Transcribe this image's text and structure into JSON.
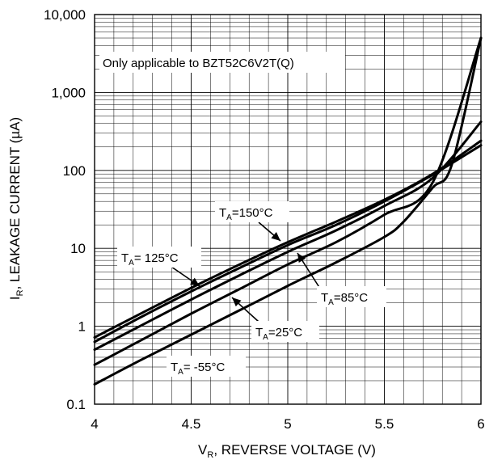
{
  "chart_data": {
    "type": "line",
    "xlabel": {
      "main": "V",
      "sub": "R",
      "rest": ", REVERSE VOLTAGE (V)"
    },
    "ylabel": {
      "main": "I",
      "sub": "R",
      "rest": ", LEAKAGE CURRENT (µA)"
    },
    "xlim": [
      4,
      6
    ],
    "ylim": [
      0.1,
      10000
    ],
    "yscale": "log",
    "grid": true,
    "xticks": [
      4,
      4.5,
      5,
      5.5,
      6
    ],
    "xticklabels": [
      "4",
      "4.5",
      "5",
      "5.5",
      "6"
    ],
    "yticks": [
      0.1,
      1,
      10,
      100,
      1000,
      10000
    ],
    "yticklabels": [
      "0.1",
      "1",
      "10",
      "100",
      "1,000",
      "10,000"
    ],
    "note": "Only applicable to BZT52C6V2T(Q)",
    "series": [
      {
        "name": "TA=150°C",
        "label_main": "T",
        "label_sub": "A",
        "label_rest": "=150°C",
        "x": [
          4.0,
          4.25,
          4.5,
          4.75,
          5.0,
          5.25,
          5.5,
          5.75,
          6.0
        ],
        "y": [
          0.72,
          1.5,
          3.1,
          6.2,
          12,
          22,
          42,
          90,
          240
        ]
      },
      {
        "name": "TA= 125°C",
        "label_main": "T",
        "label_sub": "A",
        "label_rest": "= 125°C",
        "x": [
          4.0,
          4.25,
          4.5,
          4.75,
          5.0,
          5.25,
          5.5,
          5.75,
          6.0
        ],
        "y": [
          0.63,
          1.35,
          2.8,
          5.6,
          11,
          20,
          40,
          88,
          210
        ]
      },
      {
        "name": "TA=85°C",
        "label_main": "T",
        "label_sub": "A",
        "label_rest": "=85°C",
        "x": [
          4.0,
          4.25,
          4.5,
          4.75,
          5.0,
          5.25,
          5.5,
          5.75,
          6.0
        ],
        "y": [
          0.5,
          1.05,
          2.2,
          4.5,
          9,
          17,
          35,
          80,
          420
        ]
      },
      {
        "name": "TA=25°C",
        "label_main": "T",
        "label_sub": "A",
        "label_rest": "=25°C",
        "x": [
          4.0,
          4.25,
          4.5,
          4.75,
          5.0,
          5.25,
          5.5,
          5.75,
          6.0
        ],
        "y": [
          0.32,
          0.68,
          1.45,
          3.0,
          6.2,
          12,
          27,
          70,
          5000
        ]
      },
      {
        "name": "TA= -55°C",
        "label_main": "T",
        "label_sub": "A",
        "label_rest": "= -55°C",
        "x": [
          4.0,
          4.25,
          4.5,
          4.75,
          5.0,
          5.25,
          5.5,
          5.6,
          5.75,
          5.85,
          6.0
        ],
        "y": [
          0.18,
          0.38,
          0.78,
          1.6,
          3.3,
          6.6,
          14,
          22,
          60,
          120,
          5000
        ]
      }
    ]
  }
}
